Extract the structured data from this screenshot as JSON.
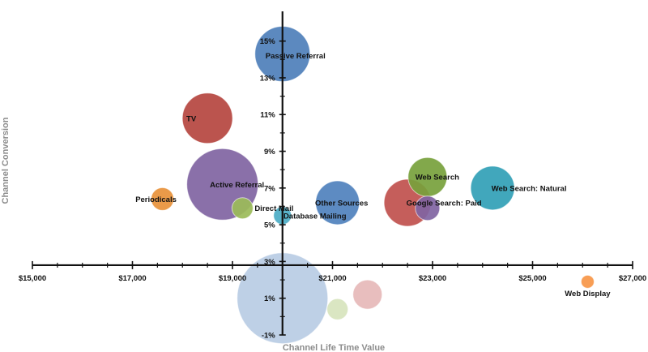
{
  "chart_data": {
    "type": "bubble",
    "title": "",
    "xlabel": "Channel Life Time Value",
    "ylabel": "Channel Conversion",
    "xlim": [
      15000,
      27000
    ],
    "ylim": [
      -1,
      16
    ],
    "x_ticks": [
      15000,
      17000,
      19000,
      21000,
      23000,
      25000,
      27000
    ],
    "x_tick_labels": [
      "$15,000",
      "$17,000",
      "$19,000",
      "$21,000",
      "$23,000",
      "$25,000",
      "$27,000"
    ],
    "y_ticks": [
      -1,
      1,
      3,
      5,
      7,
      9,
      11,
      13,
      15
    ],
    "y_tick_labels": [
      "-1%",
      "1%",
      "3%",
      "5%",
      "7%",
      "9%",
      "11%",
      "13%",
      "15%"
    ],
    "x_axis_crosses_at": 2.8,
    "y_axis_crosses_at": 20000,
    "grid": false,
    "bubbles": [
      {
        "label": "Passive Referral",
        "x": 20000,
        "y": 14.3,
        "size": 34,
        "color": "#4e7fba"
      },
      {
        "label": "TV",
        "x": 18500,
        "y": 10.8,
        "size": 31,
        "color": "#b5453f"
      },
      {
        "label": "Active Referral",
        "x": 18800,
        "y": 7.2,
        "size": 44,
        "color": "#8064a2"
      },
      {
        "label": "Periodicals",
        "x": 17600,
        "y": 6.4,
        "size": 14,
        "color": "#e8913a"
      },
      {
        "label": "Direct Mail",
        "x": 19200,
        "y": 5.9,
        "size": 13,
        "color": "#9bbb59"
      },
      {
        "label": "Database Mailing",
        "x": 20000,
        "y": 5.5,
        "size": 11,
        "color": "#4bacc6"
      },
      {
        "label": "Other Sources",
        "x": 21100,
        "y": 6.2,
        "size": 27,
        "color": "#4f81bd"
      },
      {
        "label": "Web Search",
        "x": 22900,
        "y": 7.6,
        "size": 24,
        "color": "#77a13c"
      },
      {
        "label": "Google Search: Paid",
        "x": 22500,
        "y": 6.2,
        "size": 29,
        "color": "#c0504d"
      },
      {
        "label": "",
        "x": 22900,
        "y": 5.9,
        "size": 15,
        "color": "#8064a2"
      },
      {
        "label": "Web Search: Natural",
        "x": 24200,
        "y": 7.0,
        "size": 27,
        "color": "#31a0b6"
      },
      {
        "label": "",
        "x": 20000,
        "y": 1.0,
        "size": 56,
        "color": "#b9cce4"
      },
      {
        "label": "",
        "x": 21100,
        "y": 0.4,
        "size": 13,
        "color": "#d7e4bd"
      },
      {
        "label": "",
        "x": 21700,
        "y": 1.2,
        "size": 18,
        "color": "#e6b9b8"
      },
      {
        "label": "Web Display",
        "x": 26100,
        "y": 1.9,
        "size": 8,
        "color": "#f79646"
      }
    ]
  }
}
